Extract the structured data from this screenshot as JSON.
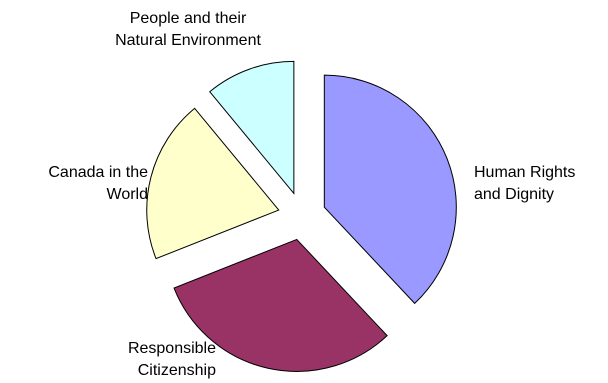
{
  "chart_data": {
    "type": "pie",
    "exploded": true,
    "categories": [
      "Human Rights and Dignity",
      "Responsible Citizenship",
      "Canada in the World",
      "People and their Natural Environment"
    ],
    "values": [
      38,
      31,
      20,
      11
    ],
    "colors": [
      "#9999FF",
      "#993366",
      "#FFFFCC",
      "#CCFFFF"
    ],
    "labels": {
      "human": [
        "Human Rights",
        "and Dignity"
      ],
      "responsible": [
        "Responsible",
        "Citizenship"
      ],
      "canada": [
        "Canada in the",
        "World"
      ],
      "people": [
        "People and their",
        "Natural Environment"
      ]
    }
  }
}
